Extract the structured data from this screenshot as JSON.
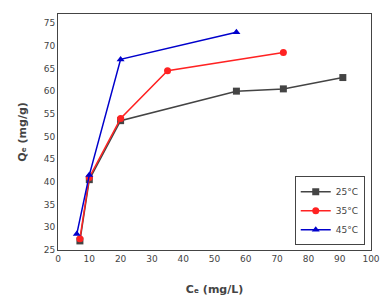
{
  "chart_data": {
    "type": "line",
    "xlabel": "Cₑ (mg/L)",
    "ylabel": "Qₑ (mg/g)",
    "series": [
      {
        "name": "25°C",
        "color": "#444444",
        "marker": "square",
        "x": [
          7,
          10,
          20,
          57,
          72,
          91
        ],
        "values": [
          27,
          40.5,
          53.5,
          60,
          60.5,
          63
        ]
      },
      {
        "name": "35°C",
        "color": "#ff2222",
        "marker": "circle",
        "x": [
          7,
          10,
          20,
          35,
          72
        ],
        "values": [
          27.5,
          41,
          54,
          64.5,
          68.5
        ]
      },
      {
        "name": "45°C",
        "color": "#0000cc",
        "marker": "triangle",
        "x": [
          6,
          10,
          20,
          57
        ],
        "values": [
          28.5,
          41.5,
          67,
          73
        ]
      }
    ],
    "xlim": [
      0,
      100
    ],
    "ylim": [
      25,
      77
    ],
    "xticks": [
      0,
      10,
      20,
      30,
      40,
      50,
      60,
      70,
      80,
      90,
      100
    ],
    "yticks": [
      25,
      30,
      35,
      40,
      45,
      50,
      55,
      60,
      65,
      70,
      75
    ],
    "grid": false,
    "legend": "lower right"
  }
}
